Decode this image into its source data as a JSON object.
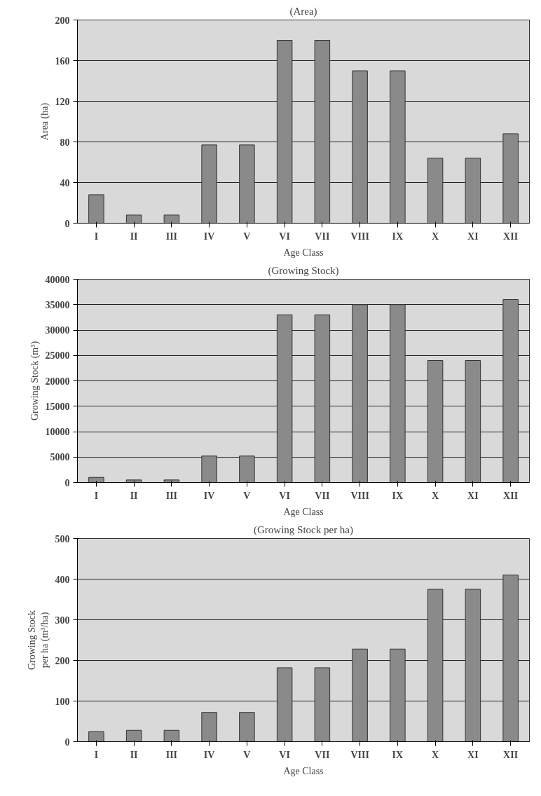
{
  "chart_data": [
    {
      "type": "bar",
      "title": "(Area)",
      "xlabel": "Age Class",
      "ylabel": "Area (ha)",
      "categories": [
        "I",
        "II",
        "III",
        "IV",
        "V",
        "VI",
        "VII",
        "VIII",
        "IX",
        "X",
        "XI",
        "XII"
      ],
      "values": [
        28,
        8,
        8,
        77,
        77,
        180,
        180,
        150,
        150,
        64,
        64,
        88
      ],
      "color": "#8a8a8a",
      "ylim": [
        0,
        200
      ],
      "yticks": [
        0,
        40,
        80,
        120,
        160,
        200
      ],
      "grid": "y"
    },
    {
      "type": "bar",
      "title": "(Growing Stock)",
      "xlabel": "Age Class",
      "ylabel": "Growing Stock (m³)",
      "categories": [
        "I",
        "II",
        "III",
        "IV",
        "V",
        "VI",
        "VII",
        "VIII",
        "IX",
        "X",
        "XI",
        "XII"
      ],
      "values": [
        1000,
        500,
        500,
        5200,
        5200,
        33000,
        33000,
        35000,
        35000,
        24000,
        24000,
        36000
      ],
      "color": "#8a8a8a",
      "ylim": [
        0,
        40000
      ],
      "yticks": [
        0,
        5000,
        10000,
        15000,
        20000,
        25000,
        30000,
        35000,
        40000
      ],
      "grid": "y"
    },
    {
      "type": "bar",
      "title": "(Growing Stock per ha)",
      "xlabel": "Age Class",
      "ylabel": "Growing Stock\nper ha (m³/ha)",
      "categories": [
        "I",
        "II",
        "III",
        "IV",
        "V",
        "VI",
        "VII",
        "VIII",
        "IX",
        "X",
        "XI",
        "XII"
      ],
      "values": [
        25,
        28,
        28,
        72,
        72,
        182,
        182,
        228,
        228,
        375,
        375,
        410
      ],
      "color": "#8a8a8a",
      "ylim": [
        0,
        500
      ],
      "yticks": [
        0,
        100,
        200,
        300,
        400,
        500
      ],
      "grid": "y"
    }
  ]
}
